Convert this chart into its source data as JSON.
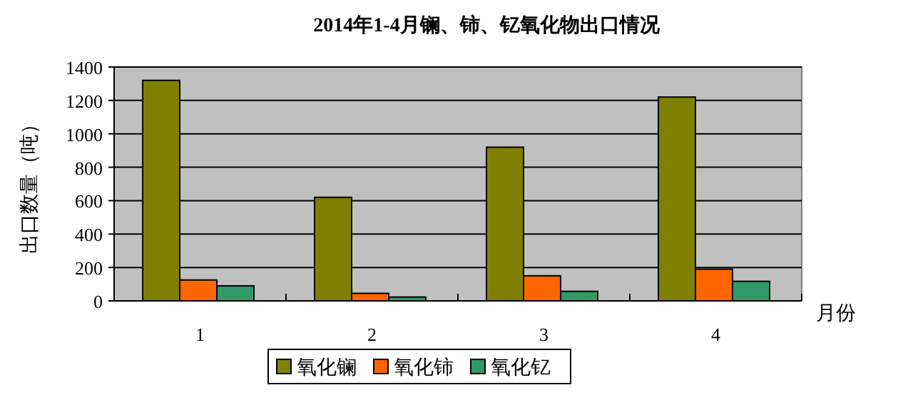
{
  "chart_data": {
    "type": "bar",
    "title": "2014年1-4月镧、铈、钇氧化物出口情况",
    "xlabel": "月份",
    "ylabel": "出口数量（吨）",
    "categories": [
      "1",
      "2",
      "3",
      "4"
    ],
    "series": [
      {
        "name": "氧化镧",
        "color": "#808000",
        "values": [
          1320,
          620,
          920,
          1220
        ]
      },
      {
        "name": "氧化铈",
        "color": "#ff6600",
        "values": [
          125,
          45,
          150,
          190
        ]
      },
      {
        "name": "氧化钇",
        "color": "#339966",
        "values": [
          90,
          23,
          57,
          117
        ]
      }
    ],
    "ylim": [
      0,
      1400
    ],
    "yticks": [
      0,
      200,
      400,
      600,
      800,
      1000,
      1200,
      1400
    ],
    "grid": "y",
    "legend": "bottom"
  }
}
